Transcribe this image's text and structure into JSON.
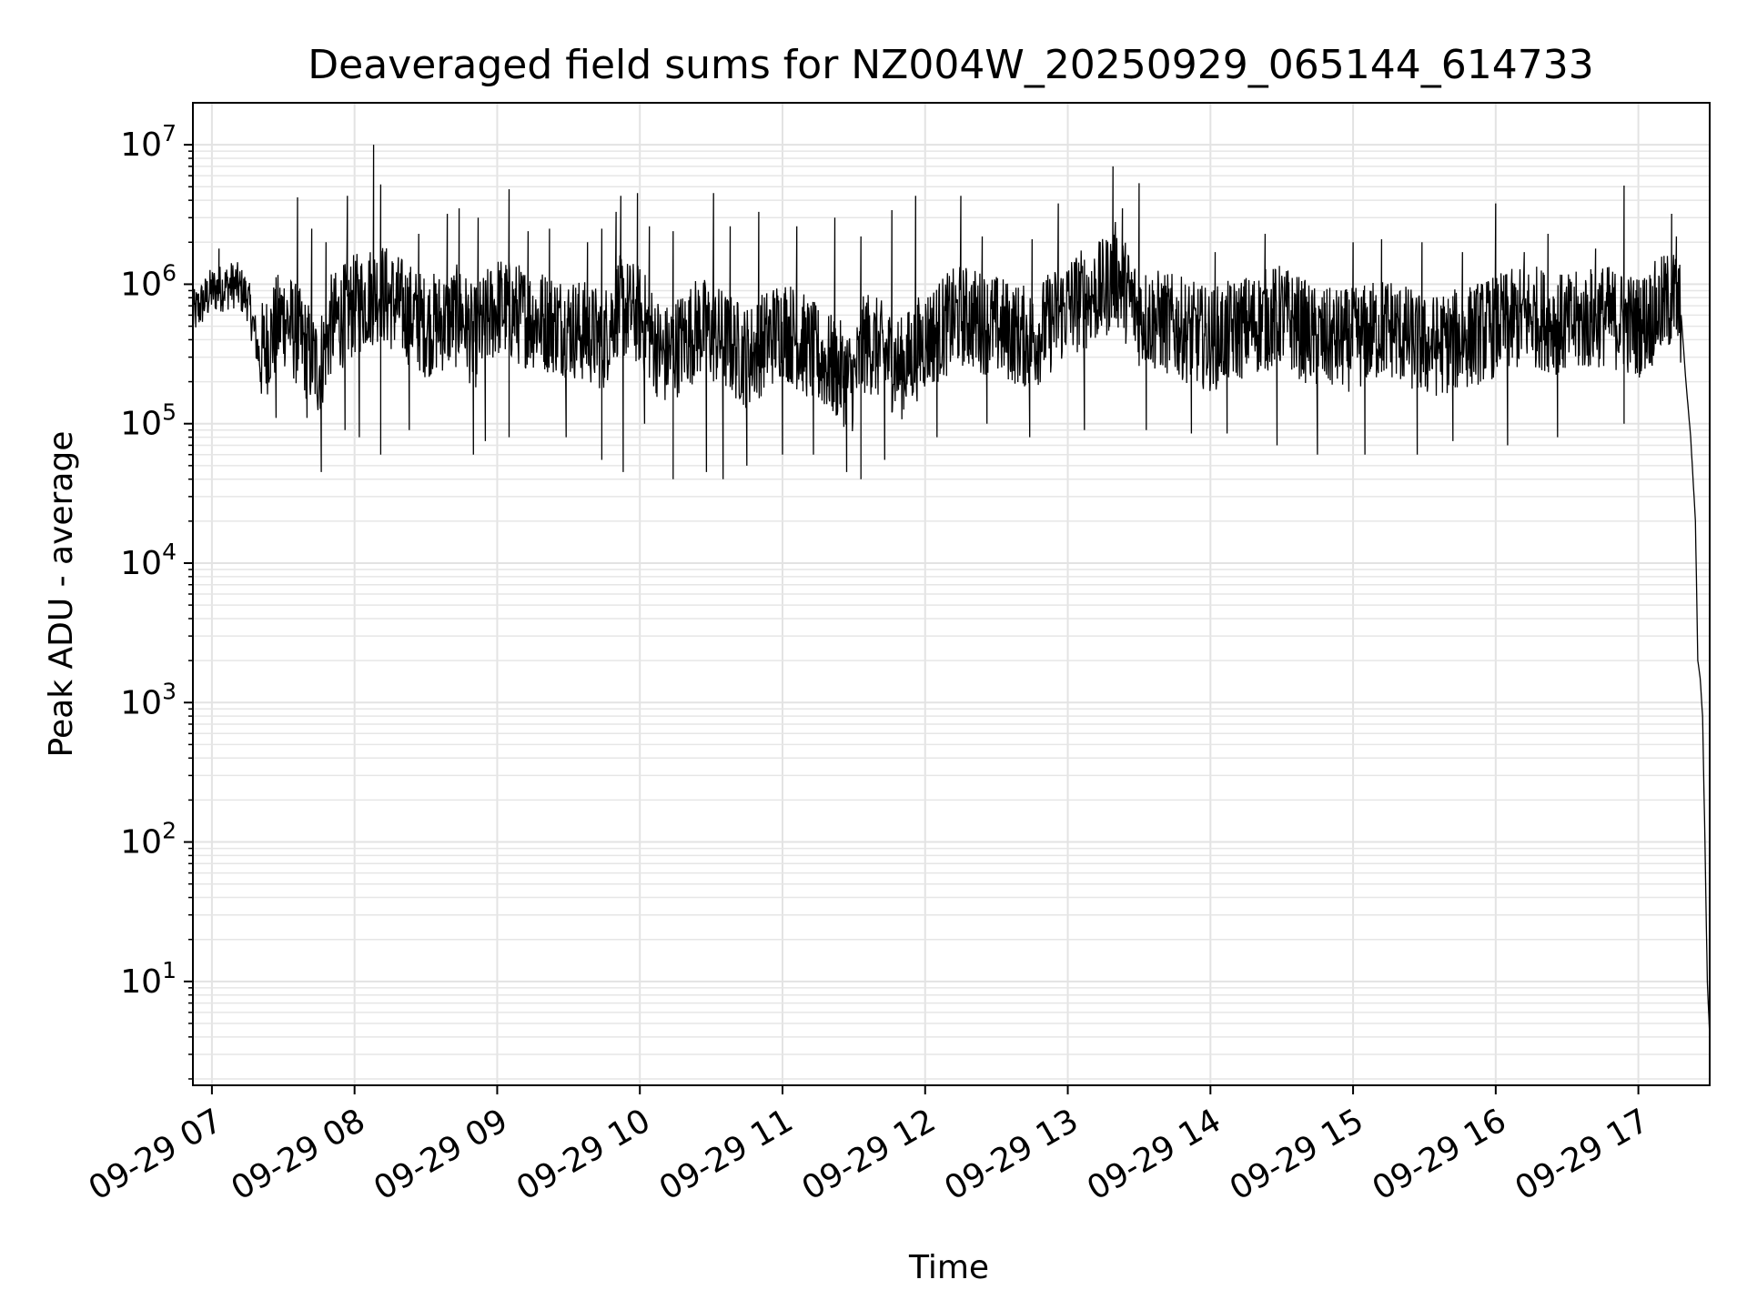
{
  "chart_data": {
    "type": "line",
    "title": "Deaveraged field sums for NZ004W_20250929_065144_614733",
    "xlabel": "Time",
    "ylabel": "Peak ADU - average",
    "yscale": "log",
    "ylim": [
      1.8,
      20000000
    ],
    "xlim": [
      "2025-09-29 06:52",
      "2025-09-29 17:30"
    ],
    "grid": true,
    "line_color": "#000000",
    "x_ticks": [
      "09-29 07",
      "09-29 08",
      "09-29 09",
      "09-29 10",
      "09-29 11",
      "09-29 12",
      "09-29 13",
      "09-29 14",
      "09-29 15",
      "09-29 16",
      "09-29 17"
    ],
    "y_ticks": [
      {
        "value": 10,
        "base": "10",
        "exp": "1"
      },
      {
        "value": 100,
        "base": "10",
        "exp": "2"
      },
      {
        "value": 1000,
        "base": "10",
        "exp": "3"
      },
      {
        "value": 10000,
        "base": "10",
        "exp": "4"
      },
      {
        "value": 100000,
        "base": "10",
        "exp": "5"
      },
      {
        "value": 1000000,
        "base": "10",
        "exp": "6"
      },
      {
        "value": 10000000,
        "base": "10",
        "exp": "7"
      }
    ],
    "series": [
      {
        "x": [
          "2025-09-29 06:52",
          "2025-09-29 07:00",
          "2025-09-29 07:10",
          "2025-09-29 07:15",
          "2025-09-29 07:20",
          "2025-09-29 07:30",
          "2025-09-29 07:45",
          "2025-09-29 07:50",
          "2025-09-29 08:00",
          "2025-09-29 08:10",
          "2025-09-29 08:30",
          "2025-09-29 08:45",
          "2025-09-29 08:50",
          "2025-09-29 09:00",
          "2025-09-29 09:10",
          "2025-09-29 09:30",
          "2025-09-29 09:45",
          "2025-09-29 09:50",
          "2025-09-29 10:00",
          "2025-09-29 10:10",
          "2025-09-29 10:25",
          "2025-09-29 10:35",
          "2025-09-29 10:45",
          "2025-09-29 11:00",
          "2025-09-29 11:15",
          "2025-09-29 11:30",
          "2025-09-29 11:35",
          "2025-09-29 11:50",
          "2025-09-29 12:00",
          "2025-09-29 12:15",
          "2025-09-29 12:30",
          "2025-09-29 12:45",
          "2025-09-29 13:00",
          "2025-09-29 13:15",
          "2025-09-29 13:20",
          "2025-09-29 13:30",
          "2025-09-29 13:45",
          "2025-09-29 14:00",
          "2025-09-29 14:15",
          "2025-09-29 14:30",
          "2025-09-29 14:45",
          "2025-09-29 15:00",
          "2025-09-29 15:15",
          "2025-09-29 15:30",
          "2025-09-29 15:45",
          "2025-09-29 16:00",
          "2025-09-29 16:15",
          "2025-09-29 16:30",
          "2025-09-29 16:45",
          "2025-09-29 17:00",
          "2025-09-29 17:15",
          "2025-09-29 17:18",
          "2025-09-29 17:20",
          "2025-09-29 17:22",
          "2025-09-29 17:24",
          "2025-09-29 17:25",
          "2025-09-29 17:26",
          "2025-09-29 17:27",
          "2025-09-29 17:28",
          "2025-09-29 17:29",
          "2025-09-29 17:30"
        ],
        "y": [
          600000,
          900000,
          1000000,
          800000,
          300000,
          600000,
          250000,
          500000,
          700000,
          900000,
          500000,
          600000,
          400000,
          700000,
          600000,
          500000,
          400000,
          700000,
          600000,
          300000,
          500000,
          400000,
          300000,
          500000,
          300000,
          200000,
          400000,
          250000,
          400000,
          600000,
          500000,
          400000,
          700000,
          900000,
          1200000,
          600000,
          500000,
          400000,
          500000,
          600000,
          400000,
          400000,
          500000,
          350000,
          400000,
          500000,
          600000,
          500000,
          600000,
          500000,
          800000,
          600000,
          200000,
          80000,
          20000,
          2000,
          1500,
          800,
          100,
          10,
          4
        ]
      }
    ],
    "spikes_high": [
      [
        "2025-09-29 07:03",
        1800000
      ],
      [
        "2025-09-29 07:36",
        4200000
      ],
      [
        "2025-09-29 07:42",
        2500000
      ],
      [
        "2025-09-29 07:48",
        2000000
      ],
      [
        "2025-09-29 07:57",
        4300000
      ],
      [
        "2025-09-29 08:08",
        10000000
      ],
      [
        "2025-09-29 08:11",
        5200000
      ],
      [
        "2025-09-29 08:27",
        2300000
      ],
      [
        "2025-09-29 08:39",
        3200000
      ],
      [
        "2025-09-29 08:44",
        3500000
      ],
      [
        "2025-09-29 08:52",
        3000000
      ],
      [
        "2025-09-29 09:05",
        4800000
      ],
      [
        "2025-09-29 09:13",
        2400000
      ],
      [
        "2025-09-29 09:22",
        2500000
      ],
      [
        "2025-09-29 09:38",
        2000000
      ],
      [
        "2025-09-29 09:44",
        2500000
      ],
      [
        "2025-09-29 09:50",
        3300000
      ],
      [
        "2025-09-29 09:52",
        4300000
      ],
      [
        "2025-09-29 09:59",
        4500000
      ],
      [
        "2025-09-29 10:04",
        2600000
      ],
      [
        "2025-09-29 10:14",
        2400000
      ],
      [
        "2025-09-29 10:31",
        4500000
      ],
      [
        "2025-09-29 10:38",
        2600000
      ],
      [
        "2025-09-29 10:50",
        3300000
      ],
      [
        "2025-09-29 11:06",
        2600000
      ],
      [
        "2025-09-29 11:22",
        3000000
      ],
      [
        "2025-09-29 11:33",
        2200000
      ],
      [
        "2025-09-29 11:46",
        3400000
      ],
      [
        "2025-09-29 11:56",
        4300000
      ],
      [
        "2025-09-29 12:15",
        4300000
      ],
      [
        "2025-09-29 12:24",
        2200000
      ],
      [
        "2025-09-29 12:45",
        2100000
      ],
      [
        "2025-09-29 12:56",
        3800000
      ],
      [
        "2025-09-29 13:19",
        7000000
      ],
      [
        "2025-09-29 13:23",
        3500000
      ],
      [
        "2025-09-29 13:30",
        5300000
      ],
      [
        "2025-09-29 14:02",
        1700000
      ],
      [
        "2025-09-29 14:23",
        2300000
      ],
      [
        "2025-09-29 15:00",
        2000000
      ],
      [
        "2025-09-29 15:12",
        2100000
      ],
      [
        "2025-09-29 15:29",
        2000000
      ],
      [
        "2025-09-29 15:46",
        1700000
      ],
      [
        "2025-09-29 16:00",
        3800000
      ],
      [
        "2025-09-29 16:12",
        1700000
      ],
      [
        "2025-09-29 16:22",
        2300000
      ],
      [
        "2025-09-29 16:42",
        1800000
      ],
      [
        "2025-09-29 16:54",
        5100000
      ],
      [
        "2025-09-29 17:14",
        3200000
      ],
      [
        "2025-09-29 17:16",
        2200000
      ]
    ],
    "spikes_low": [
      [
        "2025-09-29 07:27",
        110000
      ],
      [
        "2025-09-29 07:40",
        110000
      ],
      [
        "2025-09-29 07:46",
        45000
      ],
      [
        "2025-09-29 07:56",
        90000
      ],
      [
        "2025-09-29 08:02",
        80000
      ],
      [
        "2025-09-29 08:11",
        60000
      ],
      [
        "2025-09-29 08:23",
        90000
      ],
      [
        "2025-09-29 08:50",
        60000
      ],
      [
        "2025-09-29 08:55",
        75000
      ],
      [
        "2025-09-29 09:05",
        80000
      ],
      [
        "2025-09-29 09:29",
        80000
      ],
      [
        "2025-09-29 09:44",
        55000
      ],
      [
        "2025-09-29 09:53",
        45000
      ],
      [
        "2025-09-29 10:02",
        100000
      ],
      [
        "2025-09-29 10:14",
        40000
      ],
      [
        "2025-09-29 10:28",
        45000
      ],
      [
        "2025-09-29 10:35",
        40000
      ],
      [
        "2025-09-29 10:45",
        50000
      ],
      [
        "2025-09-29 11:00",
        60000
      ],
      [
        "2025-09-29 11:13",
        60000
      ],
      [
        "2025-09-29 11:27",
        45000
      ],
      [
        "2025-09-29 11:33",
        40000
      ],
      [
        "2025-09-29 11:43",
        55000
      ],
      [
        "2025-09-29 12:05",
        80000
      ],
      [
        "2025-09-29 12:26",
        100000
      ],
      [
        "2025-09-29 12:44",
        80000
      ],
      [
        "2025-09-29 13:07",
        90000
      ],
      [
        "2025-09-29 13:33",
        90000
      ],
      [
        "2025-09-29 13:52",
        85000
      ],
      [
        "2025-09-29 14:07",
        85000
      ],
      [
        "2025-09-29 14:28",
        70000
      ],
      [
        "2025-09-29 14:45",
        60000
      ],
      [
        "2025-09-29 15:05",
        60000
      ],
      [
        "2025-09-29 15:27",
        60000
      ],
      [
        "2025-09-29 15:42",
        75000
      ],
      [
        "2025-09-29 16:05",
        70000
      ],
      [
        "2025-09-29 16:26",
        80000
      ],
      [
        "2025-09-29 16:54",
        100000
      ]
    ]
  }
}
